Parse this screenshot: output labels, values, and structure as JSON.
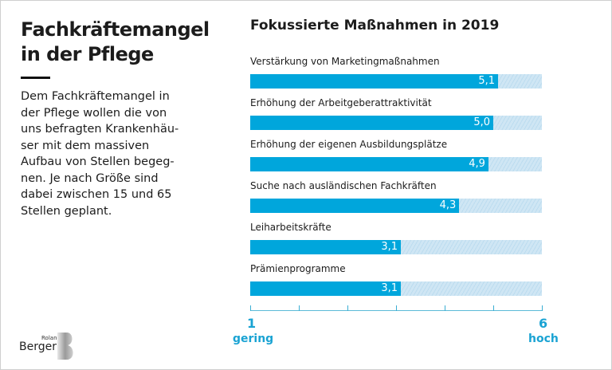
{
  "title": "Fachkräftemangel in der Pflege",
  "body": "Dem Fachkräftemangel in der Pflege wollen die von uns befragten Krankenhäu-ser mit dem massiven Aufbau von Stellen begeg-nen. Je nach Größe sind dabei zwischen 15 und 65 Stellen geplant.",
  "body_lines": [
    "Dem Fachkräftemangel in",
    "der Pflege wollen die von",
    "uns befragten Krankenhäu-",
    "ser mit dem massiven",
    "Aufbau von Stellen begeg-",
    "nen. Je nach Größe sind",
    "dabei zwischen 15 und 65",
    "Stellen geplant."
  ],
  "logo": {
    "small": "Roland",
    "large": "Berger",
    "mark": "B"
  },
  "colors": {
    "bar": "#00a6dc",
    "track": "#cfe6f4",
    "axis": "#1aa3d3",
    "text": "#1c1c1c"
  },
  "chart_data": {
    "type": "bar",
    "orientation": "horizontal",
    "title": "Fokussierte Maßnahmen in 2019",
    "categories": [
      "Verstärkung von Marketingmaßnahmen",
      "Erhöhung der Arbeitgeberattraktivität",
      "Erhöhung der eigenen Ausbildungsplätze",
      "Suche nach ausländischen Fachkräften",
      "Leiharbeitskräfte",
      "Prämienprogramme"
    ],
    "values": [
      5.1,
      5.0,
      4.9,
      4.3,
      3.1,
      3.1
    ],
    "value_labels": [
      "5,1",
      "5,0",
      "4,9",
      "4,3",
      "3,1",
      "3,1"
    ],
    "max": 6,
    "axis": {
      "min_label": "1",
      "max_label": "6",
      "min_word": "gering",
      "max_word": "hoch",
      "tick_count": 7
    },
    "grid": false,
    "legend": "none"
  }
}
